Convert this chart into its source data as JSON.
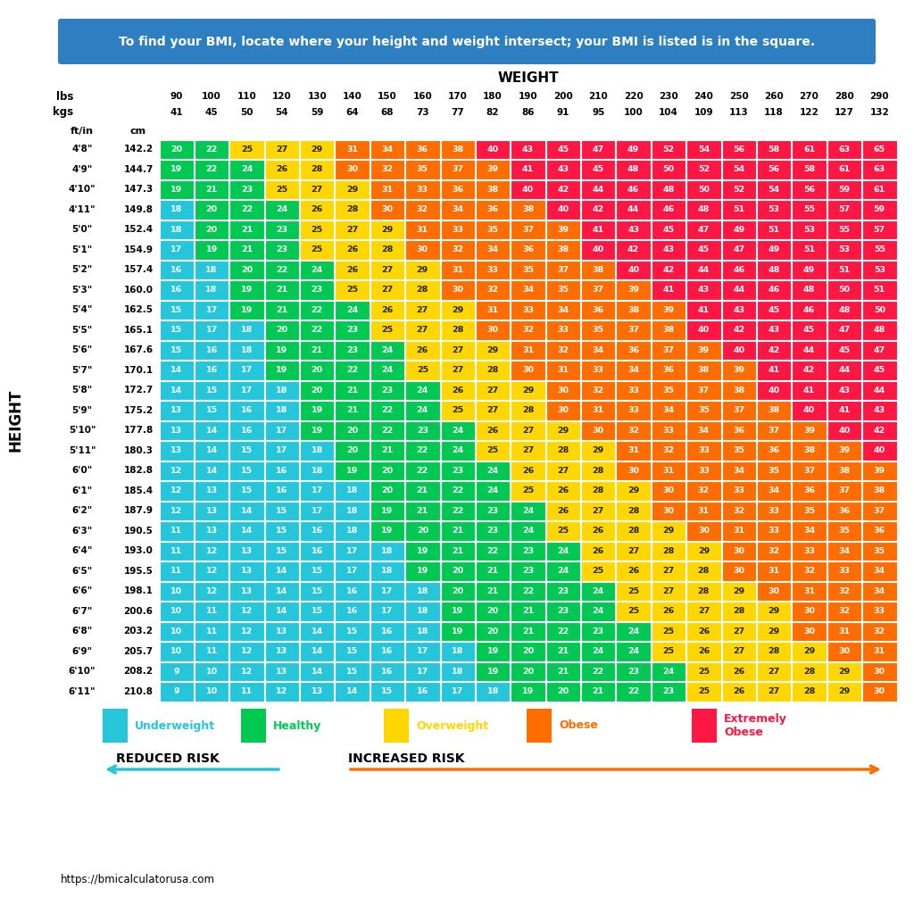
{
  "title_banner": "To find your BMI, locate where your height and weight intersect; your BMI is listed is in the square.",
  "banner_color": "#2d7fc1",
  "weight_label": "WEIGHT",
  "height_label": "HEIGHT",
  "lbs": [
    90,
    100,
    110,
    120,
    130,
    140,
    150,
    160,
    170,
    180,
    190,
    200,
    210,
    220,
    230,
    240,
    250,
    260,
    270,
    280,
    290
  ],
  "kgs": [
    41,
    45,
    50,
    54,
    59,
    64,
    68,
    73,
    77,
    82,
    86,
    91,
    95,
    100,
    104,
    109,
    113,
    118,
    122,
    127,
    132
  ],
  "heights_ftin": [
    "4'8\"",
    "4'9\"",
    "4'10\"",
    "4'11\"",
    "5'0\"",
    "5'1\"",
    "5'2\"",
    "5'3\"",
    "5'4\"",
    "5'5\"",
    "5'6\"",
    "5'7\"",
    "5'8\"",
    "5'9\"",
    "5'10\"",
    "5'11\"",
    "6'0\"",
    "6'1\"",
    "6'2\"",
    "6'3\"",
    "6'4\"",
    "6'5\"",
    "6'6\"",
    "6'7\"",
    "6'8\"",
    "6'9\"",
    "6'10\"",
    "6'11\""
  ],
  "heights_cm": [
    "142.2",
    "144.7",
    "147.3",
    "149.8",
    "152.4",
    "154.9",
    "157.4",
    "160.0",
    "162.5",
    "165.1",
    "167.6",
    "170.1",
    "172.7",
    "175.2",
    "177.8",
    "180.3",
    "182.8",
    "185.4",
    "187.9",
    "190.5",
    "193.0",
    "195.5",
    "198.1",
    "200.6",
    "203.2",
    "205.7",
    "208.2",
    "210.8"
  ],
  "bmi_data": [
    [
      20,
      22,
      25,
      27,
      29,
      31,
      34,
      36,
      38,
      40,
      43,
      45,
      47,
      49,
      52,
      54,
      56,
      58,
      61,
      63,
      65
    ],
    [
      19,
      22,
      24,
      26,
      28,
      30,
      32,
      35,
      37,
      39,
      41,
      43,
      45,
      48,
      50,
      52,
      54,
      56,
      58,
      61,
      63
    ],
    [
      19,
      21,
      23,
      25,
      27,
      29,
      31,
      33,
      36,
      38,
      40,
      42,
      44,
      46,
      48,
      50,
      52,
      54,
      56,
      59,
      61
    ],
    [
      18,
      20,
      22,
      24,
      26,
      28,
      30,
      32,
      34,
      36,
      38,
      40,
      42,
      44,
      46,
      48,
      51,
      53,
      55,
      57,
      59
    ],
    [
      18,
      20,
      21,
      23,
      25,
      27,
      29,
      31,
      33,
      35,
      37,
      39,
      41,
      43,
      45,
      47,
      49,
      51,
      53,
      55,
      57
    ],
    [
      17,
      19,
      21,
      23,
      25,
      26,
      28,
      30,
      32,
      34,
      36,
      38,
      40,
      42,
      43,
      45,
      47,
      49,
      51,
      53,
      55
    ],
    [
      16,
      18,
      20,
      22,
      24,
      26,
      27,
      29,
      31,
      33,
      35,
      37,
      38,
      40,
      42,
      44,
      46,
      48,
      49,
      51,
      53
    ],
    [
      16,
      18,
      19,
      21,
      23,
      25,
      27,
      28,
      30,
      32,
      34,
      35,
      37,
      39,
      41,
      43,
      44,
      46,
      48,
      50,
      51
    ],
    [
      15,
      17,
      19,
      21,
      22,
      24,
      26,
      27,
      29,
      31,
      33,
      34,
      36,
      38,
      39,
      41,
      43,
      45,
      46,
      48,
      50
    ],
    [
      15,
      17,
      18,
      20,
      22,
      23,
      25,
      27,
      28,
      30,
      32,
      33,
      35,
      37,
      38,
      40,
      42,
      43,
      45,
      47,
      48
    ],
    [
      15,
      16,
      18,
      19,
      21,
      23,
      24,
      26,
      27,
      29,
      31,
      32,
      34,
      36,
      37,
      39,
      40,
      42,
      44,
      45,
      47
    ],
    [
      14,
      16,
      17,
      19,
      20,
      22,
      24,
      25,
      27,
      28,
      30,
      31,
      33,
      34,
      36,
      38,
      39,
      41,
      42,
      44,
      45
    ],
    [
      14,
      15,
      17,
      18,
      20,
      21,
      23,
      24,
      26,
      27,
      29,
      30,
      32,
      33,
      35,
      37,
      38,
      40,
      41,
      43,
      44
    ],
    [
      13,
      15,
      16,
      18,
      19,
      21,
      22,
      24,
      25,
      27,
      28,
      30,
      31,
      33,
      34,
      35,
      37,
      38,
      40,
      41,
      43
    ],
    [
      13,
      14,
      16,
      17,
      19,
      20,
      22,
      23,
      24,
      26,
      27,
      29,
      30,
      32,
      33,
      34,
      36,
      37,
      39,
      40,
      42
    ],
    [
      13,
      14,
      15,
      17,
      18,
      20,
      21,
      22,
      24,
      25,
      27,
      28,
      29,
      31,
      32,
      33,
      35,
      36,
      38,
      39,
      40
    ],
    [
      12,
      14,
      15,
      16,
      18,
      19,
      20,
      22,
      23,
      24,
      26,
      27,
      28,
      30,
      31,
      33,
      34,
      35,
      37,
      38,
      39
    ],
    [
      12,
      13,
      15,
      16,
      17,
      18,
      20,
      21,
      22,
      24,
      25,
      26,
      28,
      29,
      30,
      32,
      33,
      34,
      36,
      37,
      38
    ],
    [
      12,
      13,
      14,
      15,
      17,
      18,
      19,
      21,
      22,
      23,
      24,
      26,
      27,
      28,
      30,
      31,
      32,
      33,
      35,
      36,
      37
    ],
    [
      11,
      13,
      14,
      15,
      16,
      18,
      19,
      20,
      21,
      23,
      24,
      25,
      26,
      28,
      29,
      30,
      31,
      33,
      34,
      35,
      36
    ],
    [
      11,
      12,
      13,
      15,
      16,
      17,
      18,
      19,
      21,
      22,
      23,
      24,
      26,
      27,
      28,
      29,
      30,
      32,
      33,
      34,
      35
    ],
    [
      11,
      12,
      13,
      14,
      15,
      17,
      18,
      19,
      20,
      21,
      23,
      24,
      25,
      26,
      27,
      28,
      30,
      31,
      32,
      33,
      34
    ],
    [
      10,
      12,
      13,
      14,
      15,
      16,
      17,
      18,
      20,
      21,
      22,
      23,
      24,
      25,
      27,
      28,
      29,
      30,
      31,
      32,
      34
    ],
    [
      10,
      11,
      12,
      14,
      15,
      16,
      17,
      18,
      19,
      20,
      21,
      23,
      24,
      25,
      26,
      27,
      28,
      29,
      30,
      32,
      33
    ],
    [
      10,
      11,
      12,
      13,
      14,
      15,
      16,
      18,
      19,
      20,
      21,
      22,
      23,
      24,
      25,
      26,
      27,
      29,
      30,
      31,
      32
    ],
    [
      10,
      11,
      12,
      13,
      14,
      15,
      16,
      17,
      18,
      19,
      20,
      21,
      24,
      24,
      25,
      26,
      27,
      28,
      29,
      30,
      31
    ],
    [
      9,
      10,
      12,
      13,
      14,
      15,
      16,
      17,
      18,
      19,
      20,
      21,
      22,
      23,
      24,
      25,
      26,
      27,
      28,
      29,
      30
    ],
    [
      9,
      10,
      11,
      12,
      13,
      14,
      15,
      16,
      17,
      18,
      19,
      20,
      21,
      22,
      23,
      25,
      26,
      27,
      28,
      29,
      30
    ]
  ],
  "colors": {
    "underweight": "#26c6da",
    "healthy": "#00c853",
    "overweight": "#ffd600",
    "obese": "#ff6d00",
    "extremely_obese": "#ff1744"
  },
  "bmi_thresholds": {
    "underweight_max": 18,
    "healthy_max": 24,
    "overweight_max": 29,
    "obese_max": 39
  },
  "legend": [
    {
      "label": "Underweight",
      "color": "#26c6da"
    },
    {
      "label": "Healthy",
      "color": "#00c853"
    },
    {
      "label": "Overweight",
      "color": "#ffd600"
    },
    {
      "label": "Obese",
      "color": "#ff6d00"
    },
    {
      "label": "Extremely\nObese",
      "color": "#ff1744"
    }
  ],
  "arrow_left_color": "#26c6da",
  "arrow_right_color": "#ff6d00",
  "url": "https://bmicalculatorusa.com",
  "bg_color": "#ffffff"
}
